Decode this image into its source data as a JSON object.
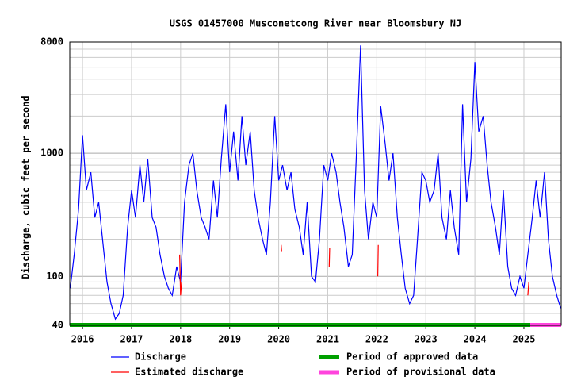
{
  "chart_data": {
    "type": "line",
    "title": "USGS 01457000 Musconetcong River near Bloomsbury NJ",
    "ylabel": "Discharge, cubic feet per second",
    "log_scale": true,
    "grid": true,
    "xlim": [
      2015.74,
      2025.76
    ],
    "xticks": [
      2016,
      2017,
      2018,
      2019,
      2020,
      2021,
      2022,
      2023,
      2024,
      2025
    ],
    "ylim": [
      40,
      8000
    ],
    "yticks": [
      40,
      100,
      1000,
      8000
    ],
    "yminor": [
      50,
      60,
      70,
      80,
      90,
      200,
      300,
      400,
      500,
      600,
      700,
      800,
      900,
      2000,
      3000,
      4000,
      5000,
      6000,
      7000
    ],
    "series": [
      {
        "name": "Discharge",
        "color": "#0000ff",
        "x": [
          2015.75,
          2015.83,
          2015.92,
          2016.0,
          2016.08,
          2016.17,
          2016.25,
          2016.33,
          2016.42,
          2016.5,
          2016.58,
          2016.67,
          2016.75,
          2016.83,
          2016.92,
          2017.0,
          2017.08,
          2017.17,
          2017.25,
          2017.33,
          2017.42,
          2017.5,
          2017.58,
          2017.67,
          2017.75,
          2017.83,
          2017.92,
          2018.0,
          2018.08,
          2018.17,
          2018.25,
          2018.33,
          2018.42,
          2018.5,
          2018.58,
          2018.67,
          2018.75,
          2018.83,
          2018.92,
          2019.0,
          2019.08,
          2019.17,
          2019.25,
          2019.33,
          2019.42,
          2019.5,
          2019.58,
          2019.67,
          2019.75,
          2019.83,
          2019.92,
          2020.0,
          2020.08,
          2020.17,
          2020.25,
          2020.33,
          2020.42,
          2020.5,
          2020.58,
          2020.67,
          2020.75,
          2020.83,
          2020.92,
          2021.0,
          2021.08,
          2021.17,
          2021.25,
          2021.33,
          2021.42,
          2021.5,
          2021.58,
          2021.67,
          2021.75,
          2021.83,
          2021.92,
          2022.0,
          2022.08,
          2022.17,
          2022.25,
          2022.33,
          2022.42,
          2022.5,
          2022.58,
          2022.67,
          2022.75,
          2022.83,
          2022.92,
          2023.0,
          2023.08,
          2023.17,
          2023.25,
          2023.33,
          2023.42,
          2023.5,
          2023.58,
          2023.67,
          2023.75,
          2023.83,
          2023.92,
          2024.0,
          2024.08,
          2024.17,
          2024.25,
          2024.33,
          2024.42,
          2024.5,
          2024.58,
          2024.67,
          2024.75,
          2024.83,
          2024.92,
          2025.0,
          2025.08,
          2025.17,
          2025.25,
          2025.33,
          2025.42,
          2025.5,
          2025.58,
          2025.67,
          2025.75
        ],
        "values": [
          80,
          150,
          350,
          1400,
          500,
          700,
          300,
          400,
          180,
          90,
          60,
          45,
          50,
          70,
          250,
          500,
          300,
          800,
          400,
          900,
          300,
          250,
          150,
          100,
          80,
          70,
          120,
          90,
          400,
          800,
          1000,
          500,
          300,
          250,
          200,
          600,
          300,
          900,
          2500,
          700,
          1500,
          600,
          2000,
          800,
          1500,
          500,
          300,
          200,
          150,
          400,
          2000,
          600,
          800,
          500,
          700,
          350,
          250,
          150,
          400,
          100,
          90,
          200,
          800,
          600,
          1000,
          700,
          400,
          250,
          120,
          150,
          900,
          7500,
          500,
          200,
          400,
          300,
          2400,
          1200,
          600,
          1000,
          300,
          150,
          80,
          60,
          70,
          200,
          700,
          600,
          400,
          500,
          1000,
          300,
          200,
          500,
          250,
          150,
          2500,
          400,
          900,
          5500,
          1500,
          2000,
          800,
          400,
          250,
          150,
          500,
          120,
          80,
          70,
          100,
          80,
          150,
          300,
          600,
          300,
          700,
          200,
          100,
          70,
          55
        ]
      },
      {
        "name": "Estimated discharge",
        "color": "#ff0000",
        "x": [
          2017.98,
          2018.0,
          2018.02,
          2019.0,
          2020.05,
          2020.06,
          2020.5,
          2021.03,
          2021.04,
          2021.5,
          2022.02,
          2022.03,
          2023.0,
          2025.08,
          2025.1
        ],
        "values": [
          150,
          70,
          90,
          null,
          180,
          160,
          null,
          120,
          170,
          null,
          100,
          180,
          null,
          70,
          90
        ]
      }
    ],
    "periods": [
      {
        "name": "Period of approved data",
        "color": "#00a000",
        "start": 2015.74,
        "end": 2025.13
      },
      {
        "name": "Period of provisional data",
        "color": "#ff44dd",
        "start": 2025.13,
        "end": 2025.76
      }
    ]
  }
}
